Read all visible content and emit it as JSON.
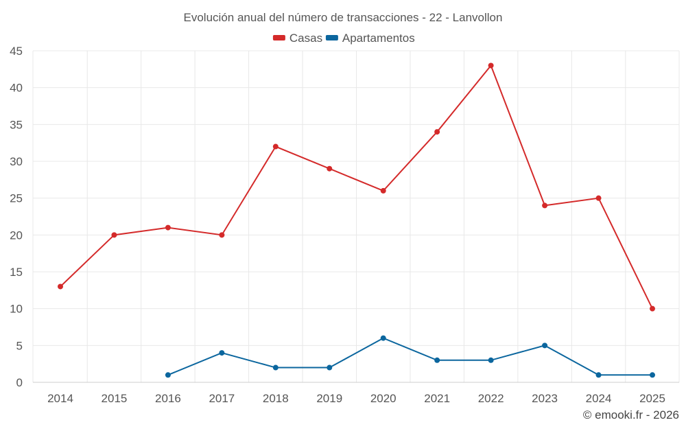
{
  "chart_data": {
    "type": "line",
    "title": "Evolución anual del número de transacciones - 22 - Lanvollon",
    "categories": [
      "2014",
      "2015",
      "2016",
      "2017",
      "2018",
      "2019",
      "2020",
      "2021",
      "2022",
      "2023",
      "2024",
      "2025"
    ],
    "series": [
      {
        "name": "Casas",
        "color": "#d42a2a",
        "values": [
          13,
          20,
          21,
          20,
          32,
          29,
          26,
          34,
          43,
          24,
          25,
          10
        ]
      },
      {
        "name": "Apartamentos",
        "color": "#0b669e",
        "values": [
          null,
          null,
          1,
          4,
          2,
          2,
          6,
          3,
          3,
          5,
          1,
          1
        ]
      }
    ],
    "ylim": [
      0,
      45
    ],
    "yticks": [
      0,
      5,
      10,
      15,
      20,
      25,
      30,
      35,
      40,
      45
    ],
    "grid": true,
    "legend_position": "top-center",
    "xlabel": "",
    "ylabel": ""
  },
  "credit": "© emooki.fr - 2026"
}
